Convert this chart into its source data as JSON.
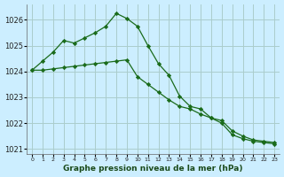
{
  "title": "Graphe pression niveau de la mer (hPa)",
  "bg_color": "#cceeff",
  "grid_color": "#aacccc",
  "line_color": "#1a6b1a",
  "line1_x": [
    0,
    1,
    2,
    3,
    4,
    5,
    6,
    7,
    8,
    9,
    10,
    11,
    12,
    13,
    14,
    15,
    16,
    17,
    18,
    19,
    20,
    21,
    22,
    23
  ],
  "line1_y": [
    1024.05,
    1024.4,
    1024.75,
    1025.2,
    1025.1,
    1025.3,
    1025.5,
    1025.75,
    1026.25,
    1026.05,
    1025.75,
    1025.0,
    1024.3,
    1023.85,
    1023.05,
    1022.65,
    1022.55,
    1022.2,
    1022.0,
    1021.55,
    1021.4,
    1021.3,
    1021.25,
    1021.2
  ],
  "line2_x": [
    0,
    1,
    2,
    3,
    4,
    5,
    6,
    7,
    8,
    9,
    10,
    11,
    12,
    13,
    14,
    15,
    16,
    17,
    18,
    19,
    20,
    21,
    22,
    23
  ],
  "line2_y": [
    1024.05,
    1024.05,
    1024.1,
    1024.15,
    1024.2,
    1024.25,
    1024.3,
    1024.35,
    1024.4,
    1024.45,
    1023.8,
    1023.5,
    1023.2,
    1022.9,
    1022.65,
    1022.55,
    1022.35,
    1022.2,
    1022.1,
    1021.7,
    1021.5,
    1021.35,
    1021.3,
    1021.25
  ],
  "ylim": [
    1020.8,
    1026.6
  ],
  "yticks": [
    1021,
    1022,
    1023,
    1024,
    1025,
    1026
  ],
  "xlim": [
    -0.5,
    23.5
  ],
  "xticks": [
    0,
    1,
    2,
    3,
    4,
    5,
    6,
    7,
    8,
    9,
    10,
    11,
    12,
    13,
    14,
    15,
    16,
    17,
    18,
    19,
    20,
    21,
    22,
    23
  ]
}
